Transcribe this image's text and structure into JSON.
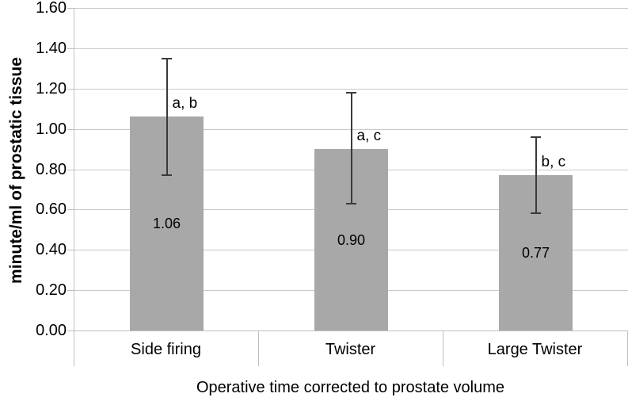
{
  "chart_data": {
    "type": "bar",
    "title": "",
    "xlabel": "Operative time corrected to prostate volume",
    "ylabel": "minute/ml of prostatic tissue",
    "categories": [
      "Side firing",
      "Twister",
      "Large Twister"
    ],
    "values": [
      1.06,
      0.9,
      0.77
    ],
    "value_labels": [
      "1.06",
      "0.90",
      "0.77"
    ],
    "error_high": [
      1.35,
      1.18,
      0.96
    ],
    "error_low": [
      0.77,
      0.63,
      0.58
    ],
    "sig_labels": [
      "a, b",
      "a, c",
      "b, c"
    ],
    "y_ticks": [
      "0.00",
      "0.20",
      "0.40",
      "0.60",
      "0.80",
      "1.00",
      "1.20",
      "1.40",
      "1.60"
    ],
    "ylim": [
      0,
      1.6
    ],
    "grid": true,
    "legend": "none",
    "bar_color": "#a8a8a8",
    "gridline_color": "#c9c9c9",
    "axis_color": "#bfbfbf",
    "error_bar_color": "#3a3a3a",
    "text_color": "#000000"
  }
}
